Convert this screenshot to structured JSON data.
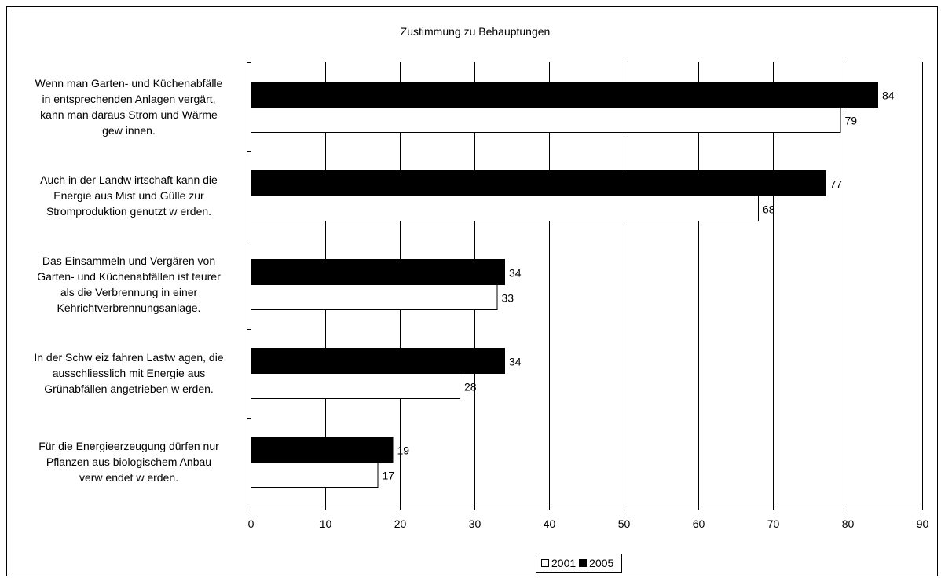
{
  "chart_data": {
    "type": "bar",
    "orientation": "horizontal",
    "title": "Zustimmung zu Behauptungen",
    "categories": [
      "Wenn man Garten- und Küchenabfälle in entsprechenden Anlagen vergärt, kann man daraus Strom und Wärme gew innen.",
      "Auch in der Landw irtschaft kann die Energie aus Mist und Gülle zur Stromproduktion genutzt w erden.",
      "Das Einsammeln und Vergären von Garten- und Küchenabfällen ist teurer als die Verbrennung in einer Kehrichtverbrennungsanlage.",
      "In der Schw eiz fahren Lastw agen, die ausschliesslich mit Energie aus Grünabfällen angetrieben w erden.",
      "Für die Energieerzeugung dürfen nur Pflanzen aus biologischem Anbau verw endet w erden."
    ],
    "category_lines": [
      [
        "Wenn man Garten- und Küchenabfälle",
        "in entsprechenden Anlagen vergärt,",
        "kann man daraus Strom und Wärme",
        "gew innen."
      ],
      [
        "Auch in der Landw irtschaft kann die",
        "Energie aus Mist und Gülle zur",
        "Stromproduktion genutzt w erden."
      ],
      [
        "Das Einsammeln und Vergären von",
        "Garten- und Küchenabfällen ist teurer",
        "als die Verbrennung in einer",
        "Kehrichtverbrennungsanlage."
      ],
      [
        "In der Schw eiz fahren Lastw agen, die",
        "ausschliesslich mit Energie aus",
        "Grünabfällen angetrieben w erden."
      ],
      [
        "Für die Energieerzeugung dürfen nur",
        "Pflanzen aus biologischem Anbau",
        "verw endet w erden."
      ]
    ],
    "series": [
      {
        "name": "2001",
        "color": "#ffffff",
        "values": [
          79,
          68,
          33,
          28,
          17
        ]
      },
      {
        "name": "2005",
        "color": "#000000",
        "values": [
          84,
          77,
          34,
          34,
          19
        ]
      }
    ],
    "xlim": [
      0,
      90
    ],
    "xticks": [
      "0",
      "10",
      "20",
      "30",
      "40",
      "50",
      "60",
      "70",
      "80",
      "90"
    ],
    "grid": true,
    "legend_position": "bottom"
  }
}
